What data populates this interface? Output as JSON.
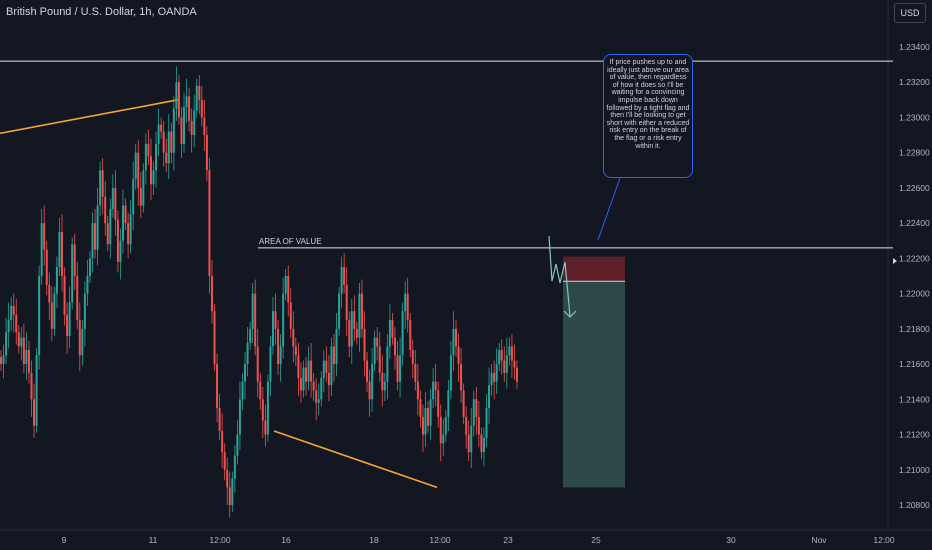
{
  "header": {
    "title": "British Pound / U.S. Dollar, 1h, OANDA",
    "currency": "USD"
  },
  "colors": {
    "background": "#131722",
    "up": "#26a69a",
    "down": "#ef5350",
    "trendline": "#f7a531",
    "level": "#e0e3eb",
    "stop": "#5d1f2a",
    "target": "#2e4a48",
    "arrow": "#88c6bd"
  },
  "annotation": {
    "area_label": "AREA OF VALUE",
    "note": "If price pushes up to and ideally just above our area of value, then regardless of how it does so I'll be waiting for a convincing impulse back down followed by a tight flag and then I'll be looking to get short with either a reduced risk entry on the break of the flag or a risk entry within it."
  },
  "chart_data": {
    "type": "candlestick",
    "symbol": "GBPUSD",
    "timeframe": "1h",
    "price_axis": {
      "ticks": [
        "1.23400",
        "1.23200",
        "1.23000",
        "1.22800",
        "1.22600",
        "1.22400",
        "1.22200",
        "1.22000",
        "1.21800",
        "1.21600",
        "1.21400",
        "1.21200",
        "1.21000",
        "1.20800"
      ],
      "ylim": [
        1.2072,
        1.2359
      ]
    },
    "time_axis": {
      "ticks": [
        "9",
        "11",
        "12:00",
        "16",
        "18",
        "12:00",
        "23",
        "25",
        "30",
        "Nov",
        "12:00"
      ]
    },
    "levels": [
      {
        "name": "swing-high-level",
        "price": 1.2332
      },
      {
        "name": "area-of-value",
        "price": 1.2226
      }
    ],
    "trendlines": [
      {
        "name": "upper-trendline",
        "from": {
          "price": 1.2291
        },
        "to": {
          "price": 1.231
        }
      },
      {
        "name": "lower-trendline",
        "from": {
          "price": 1.2122
        },
        "to": {
          "price": 1.209
        }
      }
    ],
    "position": {
      "side": "short",
      "stop_top": 1.2221,
      "entry": 1.2207,
      "target": 1.209
    },
    "closes": [
      1.216,
      1.2165,
      1.2178,
      1.2185,
      1.2193,
      1.2188,
      1.2178,
      1.217,
      1.2175,
      1.216,
      1.2168,
      1.2155,
      1.214,
      1.2125,
      1.2165,
      1.221,
      1.224,
      1.2225,
      1.2205,
      1.2195,
      1.218,
      1.22,
      1.2215,
      1.2235,
      1.221,
      1.2188,
      1.2176,
      1.2195,
      1.2228,
      1.221,
      1.2185,
      1.2165,
      1.218,
      1.22,
      1.221,
      1.222,
      1.224,
      1.2225,
      1.225,
      1.227,
      1.2255,
      1.224,
      1.2228,
      1.2248,
      1.226,
      1.2242,
      1.2218,
      1.223,
      1.225,
      1.224,
      1.2228,
      1.2245,
      1.2265,
      1.228,
      1.226,
      1.225,
      1.227,
      1.2285,
      1.2278,
      1.2262,
      1.227,
      1.2285,
      1.2296,
      1.2292,
      1.228,
      1.2274,
      1.2292,
      1.228,
      1.2305,
      1.232,
      1.23,
      1.2285,
      1.2306,
      1.2312,
      1.2298,
      1.229,
      1.2304,
      1.2318,
      1.231,
      1.23,
      1.229,
      1.227,
      1.221,
      1.219,
      1.216,
      1.2135,
      1.2122,
      1.211,
      1.21,
      1.209,
      1.208,
      1.2095,
      1.2108,
      1.212,
      1.214,
      1.215,
      1.216,
      1.2172,
      1.218,
      1.22,
      1.217,
      1.215,
      1.214,
      1.2128,
      1.212,
      1.215,
      1.217,
      1.219,
      1.218,
      1.216,
      1.217,
      1.22,
      1.221,
      1.2195,
      1.218,
      1.217,
      1.2165,
      1.2152,
      1.2145,
      1.2158,
      1.215,
      1.2162,
      1.215,
      1.2145,
      1.2138,
      1.214,
      1.2152,
      1.2162,
      1.2155,
      1.2148,
      1.217,
      1.216,
      1.218,
      1.22,
      1.2215,
      1.2205,
      1.2185,
      1.217,
      1.219,
      1.218,
      1.2175,
      1.22,
      1.218,
      1.2162,
      1.215,
      1.214,
      1.216,
      1.2175,
      1.217,
      1.2155,
      1.2145,
      1.215,
      1.217,
      1.2185,
      1.2175,
      1.2165,
      1.215,
      1.2165,
      1.219,
      1.22,
      1.2185,
      1.2168,
      1.216,
      1.215,
      1.214,
      1.213,
      1.212,
      1.2135,
      1.2125,
      1.214,
      1.215,
      1.2145,
      1.213,
      1.2115,
      1.212,
      1.213,
      1.2145,
      1.2165,
      1.218,
      1.217,
      1.216,
      1.2145,
      1.213,
      1.212,
      1.211,
      1.2125,
      1.214,
      1.213,
      1.212,
      1.211,
      1.2118,
      1.2135,
      1.2148,
      1.2155,
      1.215,
      1.216,
      1.2168,
      1.2162,
      1.2155,
      1.2165,
      1.217,
      1.2162,
      1.2158,
      1.215
    ]
  }
}
